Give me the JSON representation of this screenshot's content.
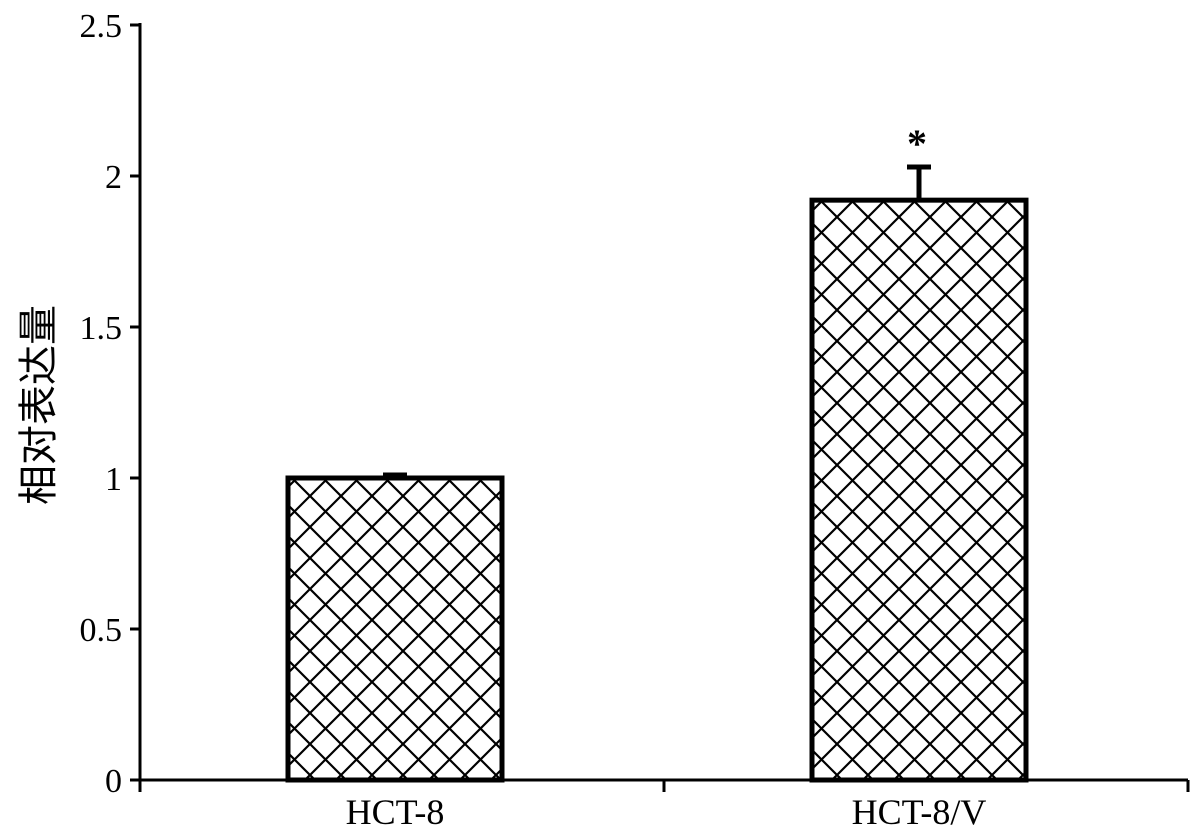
{
  "chart_data": {
    "type": "bar",
    "title": "",
    "xlabel": "",
    "ylabel": "相对表达量",
    "categories": [
      "HCT-8",
      "HCT-8/V"
    ],
    "values": [
      1.0,
      1.92
    ],
    "error": [
      0.01,
      0.11
    ],
    "annotations": [
      "",
      "*"
    ],
    "ylim": [
      0,
      2.5
    ],
    "yticks": [
      0,
      0.5,
      1,
      1.5,
      2,
      2.5
    ],
    "ytick_labels": [
      "0",
      "0.5",
      "1",
      "1.5",
      "2",
      "2.5"
    ],
    "bar_fill": "crosshatch",
    "bar_color": "#000000",
    "background": "#ffffff",
    "grid": false,
    "legend": "none"
  }
}
